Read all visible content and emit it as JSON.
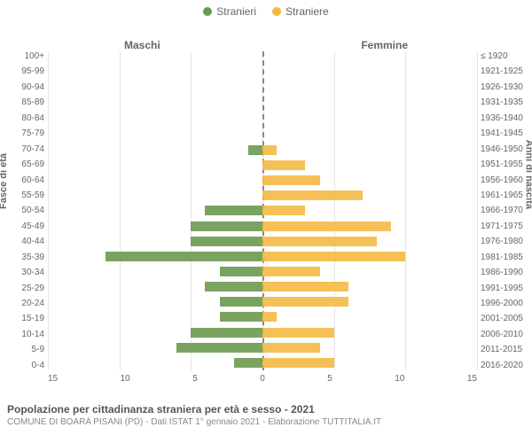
{
  "chart": {
    "type": "population-pyramid",
    "legend": {
      "male": "Stranieri",
      "female": "Straniere"
    },
    "columns": {
      "left": "Maschi",
      "right": "Femmine"
    },
    "axis_labels": {
      "left": "Fasce di età",
      "right": "Anni di nascita"
    },
    "colors": {
      "male": "#6a994e",
      "female": "#f4b942",
      "grid": "#e5e5e5",
      "centerline": "#888888",
      "background": "#ffffff",
      "text": "#666666"
    },
    "xlim": 15,
    "xticks": [
      15,
      10,
      5,
      0,
      5,
      10,
      15
    ],
    "bands": [
      {
        "age": "100+",
        "birth": "≤ 1920",
        "m": 0,
        "f": 0
      },
      {
        "age": "95-99",
        "birth": "1921-1925",
        "m": 0,
        "f": 0
      },
      {
        "age": "90-94",
        "birth": "1926-1930",
        "m": 0,
        "f": 0
      },
      {
        "age": "85-89",
        "birth": "1931-1935",
        "m": 0,
        "f": 0
      },
      {
        "age": "80-84",
        "birth": "1936-1940",
        "m": 0,
        "f": 0
      },
      {
        "age": "75-79",
        "birth": "1941-1945",
        "m": 0,
        "f": 0
      },
      {
        "age": "70-74",
        "birth": "1946-1950",
        "m": 1,
        "f": 1
      },
      {
        "age": "65-69",
        "birth": "1951-1955",
        "m": 0,
        "f": 3
      },
      {
        "age": "60-64",
        "birth": "1956-1960",
        "m": 0,
        "f": 4
      },
      {
        "age": "55-59",
        "birth": "1961-1965",
        "m": 0,
        "f": 7
      },
      {
        "age": "50-54",
        "birth": "1966-1970",
        "m": 4,
        "f": 3
      },
      {
        "age": "45-49",
        "birth": "1971-1975",
        "m": 5,
        "f": 9
      },
      {
        "age": "40-44",
        "birth": "1976-1980",
        "m": 5,
        "f": 8
      },
      {
        "age": "35-39",
        "birth": "1981-1985",
        "m": 11,
        "f": 10
      },
      {
        "age": "30-34",
        "birth": "1986-1990",
        "m": 3,
        "f": 4
      },
      {
        "age": "25-29",
        "birth": "1991-1995",
        "m": 4,
        "f": 6
      },
      {
        "age": "20-24",
        "birth": "1996-2000",
        "m": 3,
        "f": 6
      },
      {
        "age": "15-19",
        "birth": "2001-2005",
        "m": 3,
        "f": 1
      },
      {
        "age": "10-14",
        "birth": "2006-2010",
        "m": 5,
        "f": 5
      },
      {
        "age": "5-9",
        "birth": "2011-2015",
        "m": 6,
        "f": 4
      },
      {
        "age": "0-4",
        "birth": "2016-2020",
        "m": 2,
        "f": 5
      }
    ]
  },
  "footer": {
    "title": "Popolazione per cittadinanza straniera per età e sesso - 2021",
    "subtitle": "COMUNE DI BOARA PISANI (PD) - Dati ISTAT 1° gennaio 2021 - Elaborazione TUTTITALIA.IT"
  }
}
